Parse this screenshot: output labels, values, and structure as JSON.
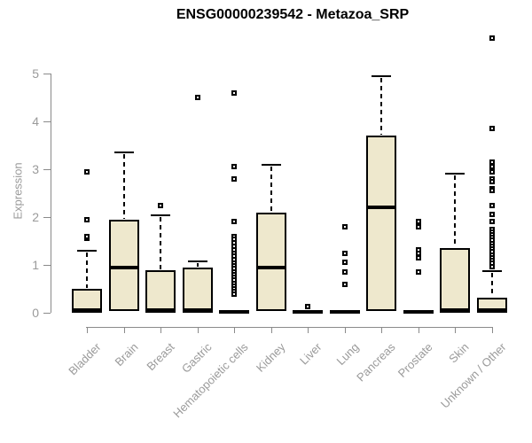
{
  "chart_data": {
    "type": "boxplot",
    "title": "ENSG00000239542 - Metazoa_SRP",
    "ylabel": "Expression",
    "ylim": [
      0,
      5.8
    ],
    "yticks": [
      0,
      1,
      2,
      3,
      4,
      5
    ],
    "grid": false,
    "legend": "none",
    "colors": {
      "box_fill": "#EEE8CD",
      "box_border": "#000000",
      "axis": "#8a8a8a",
      "tick_text": "#9a9a9a",
      "title_text": "#000000"
    },
    "categories": [
      "Bladder",
      "Brain",
      "Breast",
      "Gastric",
      "Hematopoietic cells",
      "Kidney",
      "Liver",
      "Lung",
      "Pancreas",
      "Prostate",
      "Skin",
      "Unknown / Other"
    ],
    "boxes": [
      {
        "label": "Bladder",
        "q1": 0,
        "median": 0.05,
        "q3": 0.5,
        "whisker_low": 0,
        "whisker_high": 1.3,
        "outliers": [
          1.55,
          1.6,
          1.95,
          2.95
        ]
      },
      {
        "label": "Brain",
        "q1": 0.03,
        "median": 0.95,
        "q3": 1.95,
        "whisker_low": 0,
        "whisker_high": 3.35,
        "outliers": []
      },
      {
        "label": "Breast",
        "q1": 0,
        "median": 0.05,
        "q3": 0.88,
        "whisker_low": 0,
        "whisker_high": 2.03,
        "outliers": [
          2.25
        ]
      },
      {
        "label": "Gastric",
        "q1": 0,
        "median": 0.05,
        "q3": 0.95,
        "whisker_low": 0,
        "whisker_high": 1.07,
        "outliers": [
          4.5
        ]
      },
      {
        "label": "Hematopoietic cells",
        "q1": 0,
        "median": 0.02,
        "q3": 0.05,
        "whisker_low": 0,
        "whisker_high": 0.05,
        "outliers": [
          4.6,
          3.05,
          2.8,
          1.9,
          1.6,
          1.53,
          1.46,
          1.39,
          1.32,
          1.25,
          1.18,
          1.11,
          1.04,
          0.98,
          0.92,
          0.86,
          0.8,
          0.74,
          0.68,
          0.62,
          0.56,
          0.5,
          0.44,
          0.38
        ]
      },
      {
        "label": "Kidney",
        "q1": 0.03,
        "median": 0.95,
        "q3": 2.1,
        "whisker_low": 0,
        "whisker_high": 3.1,
        "outliers": []
      },
      {
        "label": "Liver",
        "q1": 0,
        "median": 0.02,
        "q3": 0.05,
        "whisker_low": 0,
        "whisker_high": 0.05,
        "outliers": [
          0.13
        ]
      },
      {
        "label": "Lung",
        "q1": 0,
        "median": 0.02,
        "q3": 0.05,
        "whisker_low": 0,
        "whisker_high": 0.05,
        "outliers": [
          0.6,
          0.85,
          1.05,
          1.25,
          1.8
        ]
      },
      {
        "label": "Pancreas",
        "q1": 0.03,
        "median": 2.2,
        "q3": 3.7,
        "whisker_low": 0,
        "whisker_high": 4.95,
        "outliers": []
      },
      {
        "label": "Prostate",
        "q1": 0,
        "median": 0.02,
        "q3": 0.05,
        "whisker_low": 0,
        "whisker_high": 0.05,
        "outliers": [
          0.85,
          1.15,
          1.25,
          1.32,
          1.8,
          1.9
        ]
      },
      {
        "label": "Skin",
        "q1": 0,
        "median": 0.05,
        "q3": 1.35,
        "whisker_low": 0,
        "whisker_high": 2.9,
        "outliers": []
      },
      {
        "label": "Unknown / Other",
        "q1": 0,
        "median": 0.05,
        "q3": 0.32,
        "whisker_low": 0,
        "whisker_high": 0.87,
        "outliers": [
          5.75,
          3.85,
          3.15,
          3.05,
          2.95,
          2.8,
          2.75,
          2.6,
          2.55,
          2.25,
          2.05,
          1.9,
          1.75,
          1.69,
          1.63,
          1.57,
          1.51,
          1.45,
          1.39,
          1.33,
          1.27,
          1.21,
          1.15,
          1.09,
          1.03,
          0.97
        ]
      }
    ]
  }
}
